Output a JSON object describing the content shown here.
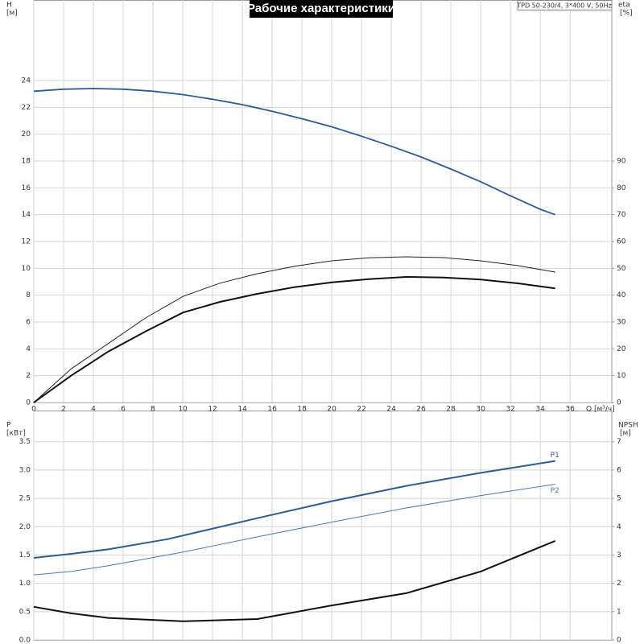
{
  "chart_data": [
    {
      "type": "line",
      "title": "Рабочие характеристики",
      "subtitle": "TPD 50-230/4, 3*400 V, 50Hz",
      "ylabel": "H",
      "yunit": "[м]",
      "y2label": "eta",
      "y2unit": "[%]",
      "xlabel": "Q [м³/ч]",
      "xlim": [
        0,
        38.8
      ],
      "xticks": [
        0,
        2,
        4,
        6,
        8,
        10,
        12,
        14,
        16,
        18,
        20,
        22,
        24,
        26,
        28,
        30,
        32,
        34,
        36
      ],
      "ylim": [
        0,
        30
      ],
      "yticks": [
        0,
        2,
        4,
        6,
        8,
        10,
        12,
        14,
        16,
        18,
        20,
        22,
        24
      ],
      "y2lim": [
        0,
        150
      ],
      "y2ticks": [
        0,
        10,
        20,
        30,
        40,
        50,
        60,
        70,
        80,
        90
      ],
      "grid": true,
      "series": [
        {
          "color": "#2a5b9a",
          "width": 1.8,
          "x": [
            0,
            2,
            4,
            6,
            8,
            10,
            12,
            14,
            16,
            18,
            20,
            22,
            24,
            26,
            28,
            30,
            32,
            34,
            35
          ],
          "values": [
            23.2,
            23.35,
            23.4,
            23.35,
            23.2,
            22.95,
            22.6,
            22.2,
            21.7,
            21.15,
            20.55,
            19.85,
            19.1,
            18.3,
            17.4,
            16.45,
            15.4,
            14.4,
            14.0
          ]
        },
        {
          "color": "#222222",
          "width": 1,
          "axis": "y2",
          "x": [
            0,
            2.5,
            5,
            7.5,
            10,
            12.5,
            15,
            17.5,
            20,
            22.5,
            25,
            27.5,
            30,
            32.5,
            35
          ],
          "values": [
            0,
            12.5,
            22,
            31.5,
            39.5,
            44.5,
            48,
            50.8,
            52.8,
            53.9,
            54.3,
            54,
            52.8,
            51,
            48.6
          ]
        },
        {
          "color": "#111111",
          "width": 2,
          "axis": "y2",
          "x": [
            0,
            2.5,
            5,
            7.5,
            10,
            12.5,
            15,
            17.5,
            20,
            22.5,
            25,
            27.5,
            30,
            32.5,
            35
          ],
          "values": [
            0,
            10,
            19,
            26.5,
            33.5,
            37.5,
            40.5,
            43,
            44.8,
            46,
            46.8,
            46.6,
            45.8,
            44.4,
            42.5
          ]
        }
      ]
    },
    {
      "type": "line",
      "ylabel": "P",
      "yunit": "[кВт]",
      "y2label": "NPSH",
      "y2unit": "[м]",
      "xlim": [
        0,
        38.8
      ],
      "ylim": [
        0,
        4.05
      ],
      "yticks": [
        {
          "value": 0,
          "label": "0.0"
        },
        {
          "value": 0.5,
          "label": "0.5"
        },
        {
          "value": 1,
          "label": "1.0"
        },
        {
          "value": 1.5,
          "label": "1.5"
        },
        {
          "value": 2,
          "label": "2.0"
        },
        {
          "value": 2.5,
          "label": "2.5"
        },
        {
          "value": 3,
          "label": "3.0"
        },
        {
          "value": 3.5,
          "label": "3.5"
        }
      ],
      "y2lim": [
        0,
        8.1
      ],
      "y2ticks": [
        0,
        1,
        2,
        3,
        4,
        5,
        6,
        7
      ],
      "grid": true,
      "series": [
        {
          "name": "P1",
          "color": "#2c5d94",
          "width": 2,
          "x": [
            0,
            2.5,
            5,
            9,
            15,
            20,
            25,
            30,
            35
          ],
          "values": [
            1.45,
            1.52,
            1.6,
            1.78,
            2.15,
            2.45,
            2.72,
            2.95,
            3.16
          ]
        },
        {
          "name": "P2",
          "color": "#4a7ab0",
          "width": 1,
          "x": [
            0,
            2.5,
            5,
            10,
            15,
            20,
            25,
            30,
            35
          ],
          "values": [
            1.15,
            1.21,
            1.31,
            1.55,
            1.82,
            2.08,
            2.33,
            2.55,
            2.75
          ]
        },
        {
          "color": "#111111",
          "width": 2,
          "axis": "y2",
          "x": [
            0,
            2.5,
            5,
            10,
            15,
            20,
            25,
            30,
            35
          ],
          "values": [
            1.17,
            0.94,
            0.78,
            0.66,
            0.74,
            1.22,
            1.65,
            2.42,
            3.5
          ]
        }
      ]
    }
  ]
}
